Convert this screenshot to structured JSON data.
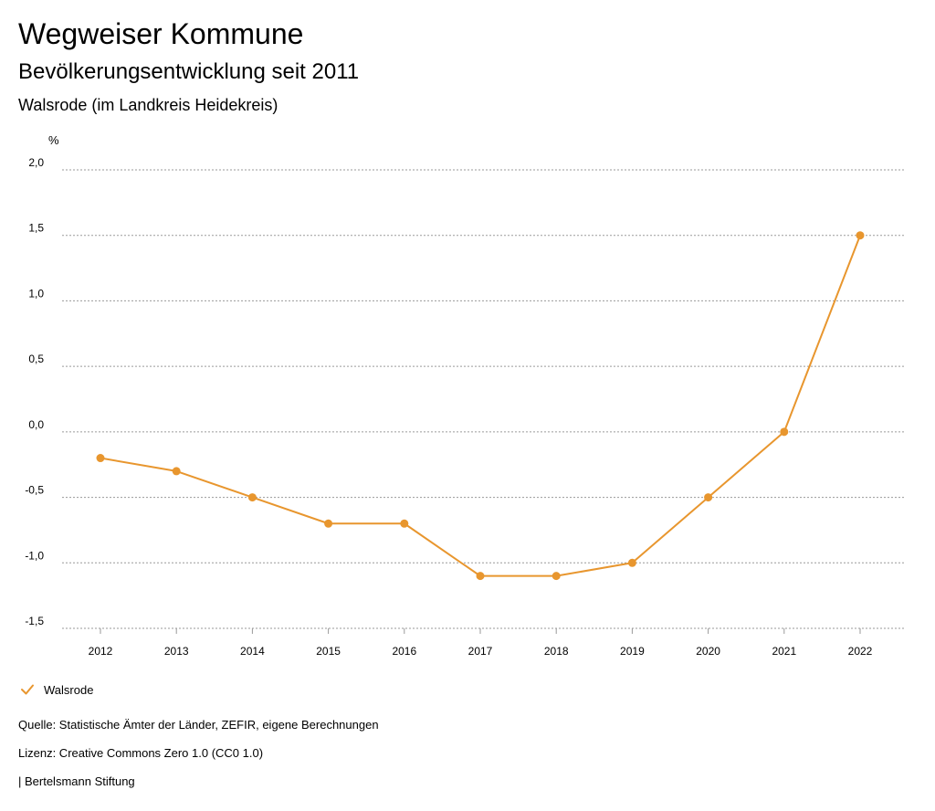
{
  "header": {
    "title": "Wegweiser Kommune",
    "subtitle": "Bevölkerungsentwicklung seit 2011",
    "region": "Walsrode (im Landkreis Heidekreis)"
  },
  "chart_data": {
    "type": "line",
    "title": "Bevölkerungsentwicklung seit 2011",
    "ylabel": "%",
    "xlabel": "",
    "categories": [
      "2012",
      "2013",
      "2014",
      "2015",
      "2016",
      "2017",
      "2018",
      "2019",
      "2020",
      "2021",
      "2022"
    ],
    "series": [
      {
        "name": "Walsrode",
        "values": [
          -0.2,
          -0.3,
          -0.5,
          -0.7,
          -0.7,
          -1.1,
          -1.1,
          -1.0,
          -0.5,
          0.0,
          1.5
        ],
        "color": "#e8962e"
      }
    ],
    "ylim": [
      -1.5,
      2.0
    ],
    "yticks": [
      2.0,
      1.5,
      1.0,
      0.5,
      0.0,
      -0.5,
      -1.0,
      -1.5
    ],
    "ytick_labels": [
      "2,0",
      "1,5",
      "1,0",
      "0,5",
      "0,0",
      "-0,5",
      "-1,0",
      "-1,5"
    ],
    "grid": true,
    "legend_placement": "bottom-left"
  },
  "legend": {
    "label": "Walsrode"
  },
  "footer": {
    "source": "Quelle: Statistische Ämter der Länder, ZEFIR, eigene Berechnungen",
    "license": "Lizenz: Creative Commons Zero 1.0 (CC0 1.0)",
    "publisher": "| Bertelsmann Stiftung"
  }
}
